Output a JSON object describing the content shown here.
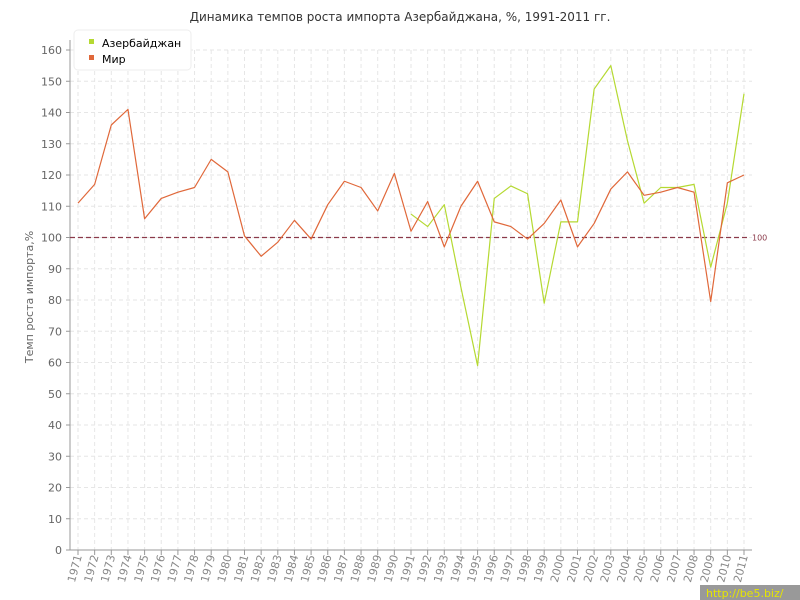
{
  "chart_data": {
    "type": "line",
    "title": "Динамика темпов роста импорта Азербайджана, %, 1991-2011 гг.",
    "xlabel": "",
    "ylabel": "Темп роста импорта,%",
    "ylim": [
      0,
      160
    ],
    "yticks": [
      0,
      10,
      20,
      30,
      40,
      50,
      60,
      70,
      80,
      90,
      100,
      110,
      120,
      130,
      140,
      150,
      160
    ],
    "x": [
      "1971",
      "1972",
      "1973",
      "1974",
      "1975",
      "1976",
      "1977",
      "1978",
      "1979",
      "1980",
      "1981",
      "1982",
      "1983",
      "1984",
      "1985",
      "1986",
      "1987",
      "1988",
      "1989",
      "1990",
      "1991",
      "1992",
      "1993",
      "1994",
      "1995",
      "1996",
      "1997",
      "1998",
      "1999",
      "2000",
      "2001",
      "2002",
      "2003",
      "2004",
      "2005",
      "2006",
      "2007",
      "2008",
      "2009",
      "2010",
      "2011"
    ],
    "grid": true,
    "legend_position": "top-left",
    "series": [
      {
        "name": "Азербайджан",
        "color": "#b5d932",
        "values": [
          null,
          null,
          null,
          null,
          null,
          null,
          null,
          null,
          null,
          null,
          null,
          null,
          null,
          null,
          null,
          null,
          null,
          null,
          null,
          null,
          107.5,
          103.5,
          110.5,
          84,
          59,
          112.5,
          116.5,
          114,
          79,
          105,
          105,
          147.5,
          155,
          131,
          111,
          116,
          116,
          117,
          90.5,
          111,
          146
        ]
      },
      {
        "name": "Мир",
        "color": "#e0683a",
        "values": [
          111,
          117,
          136,
          141,
          106,
          112.5,
          114.5,
          116,
          125,
          121,
          100.5,
          94,
          98.5,
          105.5,
          99.5,
          110.5,
          118,
          116,
          108.5,
          120.5,
          102,
          111.5,
          97,
          110,
          118,
          105,
          103.5,
          99.5,
          104.5,
          112,
          97,
          104.5,
          115.5,
          121,
          113.5,
          114.5,
          116,
          114.5,
          79.5,
          117.5,
          120
        ]
      }
    ],
    "reference_line": {
      "value": 100,
      "label": "100",
      "color": "#8b3a4a"
    }
  },
  "watermark": "http://be5.biz/"
}
